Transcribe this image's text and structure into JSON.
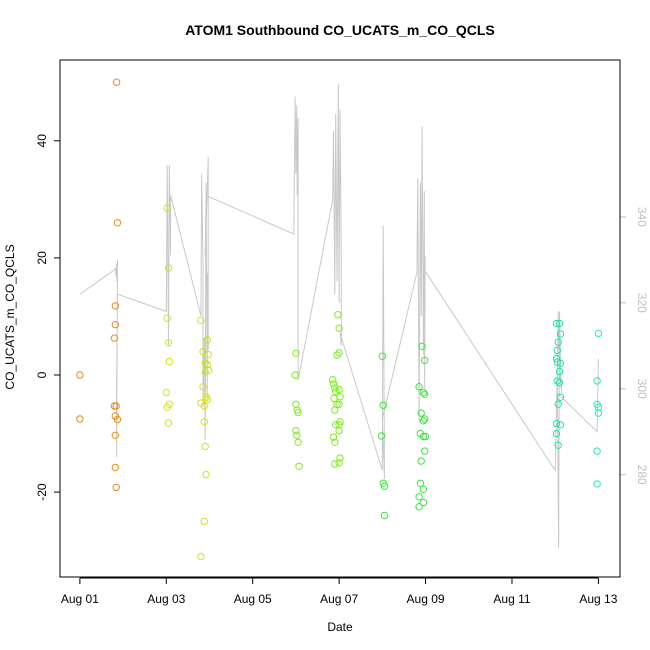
{
  "chart_data": {
    "type": "scatter",
    "title": "ATOM1 Southbound CO_UCATS_m_CO_QCLS",
    "xlabel": "Date",
    "ylabel": "CO_UCATS_m_CO_QCLS",
    "x_tick_labels": [
      {
        "day": 1,
        "label": "Aug 01"
      },
      {
        "day": 3,
        "label": "Aug 03"
      },
      {
        "day": 5,
        "label": "Aug 05"
      },
      {
        "day": 7,
        "label": "Aug 07"
      },
      {
        "day": 9,
        "label": "Aug 09"
      },
      {
        "day": 11,
        "label": "Aug 11"
      },
      {
        "day": 13,
        "label": "Aug 13"
      }
    ],
    "xlim": [
      0.54,
      13.5
    ],
    "ylim": [
      -34.5,
      53.8
    ],
    "yticks": [
      -20,
      0,
      20,
      40
    ],
    "y2lim": [
      256.2,
      376.5
    ],
    "y2ticks": [
      280,
      300,
      320,
      340
    ],
    "y2_color": "#c0c0c0",
    "grid": false,
    "series": [
      {
        "color": "#ee8a1a",
        "points": [
          [
            1.0,
            0.0
          ],
          [
            1.0,
            -7.5
          ],
          [
            1.85,
            50.0
          ],
          [
            1.87,
            26.0
          ],
          [
            1.82,
            11.8
          ],
          [
            1.82,
            8.6
          ],
          [
            1.8,
            6.3
          ],
          [
            1.8,
            -5.3
          ],
          [
            1.84,
            -5.3
          ],
          [
            1.82,
            -7.0
          ],
          [
            1.87,
            -7.6
          ],
          [
            1.82,
            -10.3
          ],
          [
            1.82,
            -15.8
          ],
          [
            1.84,
            -19.2
          ]
        ]
      },
      {
        "color": "#d8e01e",
        "points": [
          [
            3.02,
            28.5
          ],
          [
            3.05,
            18.3
          ],
          [
            3.02,
            9.7
          ],
          [
            3.05,
            5.5
          ],
          [
            3.07,
            2.3
          ],
          [
            3.0,
            -3.0
          ],
          [
            3.07,
            -5.0
          ],
          [
            3.02,
            -5.5
          ],
          [
            3.05,
            -8.2
          ],
          [
            3.8,
            9.3
          ],
          [
            3.85,
            4.0
          ],
          [
            3.9,
            2.0
          ],
          [
            3.9,
            0.5
          ],
          [
            3.85,
            -2.0
          ],
          [
            3.8,
            -4.8
          ],
          [
            3.88,
            -5.3
          ],
          [
            3.92,
            -3.8
          ],
          [
            3.95,
            -4.2
          ],
          [
            3.88,
            -8.0
          ],
          [
            3.9,
            -12.2
          ],
          [
            3.92,
            -17.0
          ],
          [
            3.88,
            -25.0
          ],
          [
            3.8,
            -31.0
          ]
        ]
      },
      {
        "color": "#b4ea1e",
        "points": [
          [
            3.95,
            6.0
          ],
          [
            3.97,
            3.5
          ],
          [
            3.95,
            1.8
          ],
          [
            3.98,
            0.8
          ]
        ]
      },
      {
        "color": "#7eed1a",
        "points": [
          [
            6.0,
            3.7
          ],
          [
            5.98,
            0.0
          ],
          [
            6.0,
            -5.0
          ],
          [
            6.03,
            -6.0
          ],
          [
            6.05,
            -6.4
          ],
          [
            6.0,
            -9.5
          ],
          [
            6.02,
            -10.3
          ],
          [
            6.05,
            -11.5
          ],
          [
            6.07,
            -15.6
          ],
          [
            6.85,
            -0.8
          ],
          [
            6.87,
            -1.5
          ],
          [
            6.9,
            -2.2
          ],
          [
            6.92,
            -2.8
          ],
          [
            6.88,
            -4.0
          ],
          [
            6.9,
            -6.0
          ],
          [
            6.95,
            -5.0
          ],
          [
            6.92,
            -8.5
          ],
          [
            6.87,
            -10.6
          ],
          [
            6.9,
            -11.5
          ],
          [
            6.9,
            -15.2
          ],
          [
            6.97,
            10.3
          ],
          [
            7.0,
            8.0
          ],
          [
            6.95,
            3.4
          ],
          [
            7.0,
            3.8
          ],
          [
            7.0,
            -2.5
          ],
          [
            7.02,
            -3.7
          ],
          [
            7.0,
            -5.0
          ],
          [
            7.02,
            -8.0
          ],
          [
            7.0,
            -8.5
          ],
          [
            7.0,
            -9.5
          ],
          [
            7.0,
            -15.0
          ],
          [
            7.02,
            -14.2
          ]
        ]
      },
      {
        "color": "#3ae83a",
        "points": [
          [
            8.0,
            3.2
          ],
          [
            8.02,
            -5.2
          ],
          [
            7.98,
            -10.4
          ],
          [
            8.02,
            -18.5
          ],
          [
            8.05,
            -19.0
          ],
          [
            8.05,
            -24.0
          ],
          [
            8.85,
            -2.0
          ],
          [
            8.92,
            4.9
          ],
          [
            8.98,
            2.5
          ],
          [
            8.95,
            -3.0
          ],
          [
            8.98,
            -3.3
          ],
          [
            8.9,
            -6.5
          ],
          [
            8.95,
            -7.8
          ],
          [
            8.98,
            -7.5
          ],
          [
            8.88,
            -10.0
          ],
          [
            8.95,
            -10.5
          ],
          [
            9.0,
            -10.5
          ],
          [
            8.98,
            -13.0
          ],
          [
            8.9,
            -14.7
          ],
          [
            8.88,
            -18.5
          ],
          [
            8.95,
            -19.5
          ],
          [
            8.85,
            -20.8
          ],
          [
            8.95,
            -21.8
          ],
          [
            8.85,
            -22.5
          ]
        ]
      },
      {
        "color": "#1ee89c",
        "points": [
          [
            12.03,
            8.8
          ],
          [
            12.1,
            8.8
          ],
          [
            12.12,
            7.0
          ],
          [
            12.07,
            5.6
          ],
          [
            12.05,
            4.2
          ],
          [
            12.03,
            2.8
          ],
          [
            12.05,
            2.2
          ],
          [
            12.12,
            2.0
          ],
          [
            12.1,
            0.6
          ],
          [
            12.05,
            -1.0
          ],
          [
            12.1,
            -1.3
          ],
          [
            12.12,
            -3.8
          ],
          [
            12.07,
            -5.0
          ],
          [
            12.03,
            -8.3
          ],
          [
            12.12,
            -8.5
          ],
          [
            12.03,
            -10.0
          ],
          [
            12.07,
            -12.0
          ]
        ]
      },
      {
        "color": "#26ebc0",
        "points": [
          [
            13.0,
            7.1
          ],
          [
            12.97,
            -1.0
          ],
          [
            12.97,
            -5.0
          ],
          [
            13.0,
            -5.5
          ],
          [
            13.0,
            -6.5
          ],
          [
            12.97,
            -13.0
          ],
          [
            12.97,
            -18.6
          ]
        ]
      }
    ],
    "secondary_line": {
      "color": "#c8c8c8",
      "axis": "right",
      "points": [
        [
          1.0,
          322
        ],
        [
          1.85,
          328
        ],
        [
          1.85,
          326
        ],
        [
          1.82,
          327
        ],
        [
          1.85,
          329
        ],
        [
          1.87,
          328
        ],
        [
          1.85,
          326
        ],
        [
          1.87,
          329
        ],
        [
          1.85,
          325
        ],
        [
          1.87,
          330
        ],
        [
          1.85,
          284
        ],
        [
          1.85,
          300
        ],
        [
          1.87,
          322
        ],
        [
          3.0,
          318
        ],
        [
          3.02,
          352
        ],
        [
          3.05,
          310
        ],
        [
          3.07,
          352
        ],
        [
          3.1,
          331
        ],
        [
          3.1,
          345
        ],
        [
          3.8,
          317
        ],
        [
          3.82,
          350
        ],
        [
          3.85,
          328
        ],
        [
          3.85,
          296
        ],
        [
          3.88,
          312
        ],
        [
          3.9,
          288
        ],
        [
          3.92,
          348
        ],
        [
          3.95,
          297
        ],
        [
          3.95,
          327
        ],
        [
          3.97,
          309
        ],
        [
          3.97,
          354
        ],
        [
          3.9,
          331
        ],
        [
          3.92,
          345
        ],
        [
          5.95,
          336
        ],
        [
          5.98,
          368
        ],
        [
          6.0,
          350
        ],
        [
          6.02,
          366
        ],
        [
          6.03,
          345
        ],
        [
          6.05,
          363
        ],
        [
          6.05,
          302
        ],
        [
          6.85,
          344
        ],
        [
          6.87,
          360
        ],
        [
          6.9,
          322
        ],
        [
          6.92,
          364
        ],
        [
          6.95,
          325
        ],
        [
          6.98,
          371
        ],
        [
          7.0,
          320
        ],
        [
          7.02,
          365
        ],
        [
          7.05,
          330
        ],
        [
          7.05,
          310
        ],
        [
          7.02,
          313
        ],
        [
          8.0,
          281
        ],
        [
          8.02,
          338
        ],
        [
          8.05,
          279
        ],
        [
          8.0,
          293
        ],
        [
          8.8,
          327
        ],
        [
          8.82,
          349
        ],
        [
          8.85,
          292
        ],
        [
          8.88,
          348
        ],
        [
          8.9,
          317
        ],
        [
          8.92,
          361
        ],
        [
          8.95,
          308
        ],
        [
          8.97,
          346
        ],
        [
          8.98,
          300
        ],
        [
          8.99,
          331
        ],
        [
          8.95,
          328
        ],
        [
          12.0,
          281
        ],
        [
          12.05,
          304
        ],
        [
          12.08,
          263
        ],
        [
          12.1,
          318
        ],
        [
          12.12,
          306
        ],
        [
          12.15,
          299
        ],
        [
          12.1,
          304
        ],
        [
          12.07,
          318
        ],
        [
          12.05,
          299
        ],
        [
          12.97,
          290
        ],
        [
          13.0,
          307
        ]
      ]
    }
  }
}
